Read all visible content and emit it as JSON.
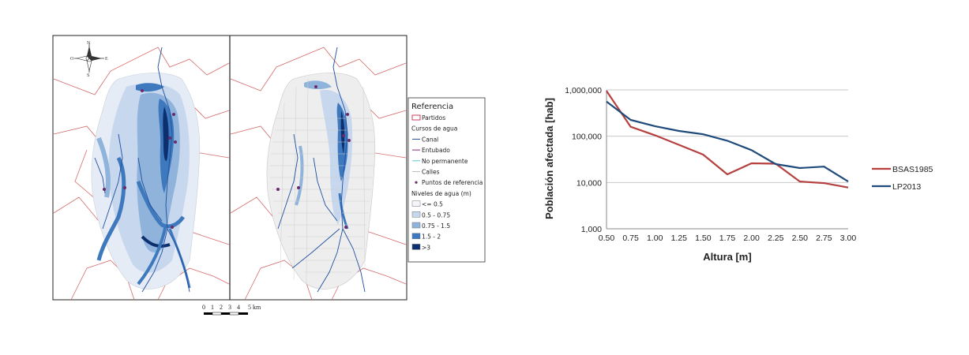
{
  "map": {
    "compass": {
      "n": "N",
      "s": "S",
      "e": "E",
      "o": "O"
    },
    "legend": {
      "title": "Referencia",
      "items": [
        {
          "label": "Partidos",
          "icon": "boundary-swatch-icon",
          "color": "#c8102e"
        },
        {
          "label": "Cursos de agua",
          "icon": "",
          "color": ""
        },
        {
          "label": "Canal",
          "icon": "canal-line-icon",
          "color": "#1f4fa0"
        },
        {
          "label": "Entubado",
          "icon": "entubado-line-icon",
          "color": "#8b2a7a"
        },
        {
          "label": "No permanente",
          "icon": "no-permanente-line-icon",
          "color": "#5fc6c9"
        },
        {
          "label": "Calles",
          "icon": "calles-line-icon",
          "color": "#bbbbbb"
        },
        {
          "label": "Puntos de referencia",
          "icon": "reference-point-icon",
          "color": "#6a2a6a"
        },
        {
          "label": "Niveles de agua (m)",
          "icon": "",
          "color": ""
        },
        {
          "label": "<= 0.5",
          "icon": "level-swatch-icon",
          "color": "#f4f6fb"
        },
        {
          "label": "0.5 - 0.75",
          "icon": "level-swatch-icon",
          "color": "#c6d7ee"
        },
        {
          "label": "0.75 - 1.5",
          "icon": "level-swatch-icon",
          "color": "#8fb3da"
        },
        {
          "label": "1.5 - 2",
          "icon": "level-swatch-icon",
          "color": "#3f79bd"
        },
        {
          "label": ">3",
          "icon": "level-swatch-icon",
          "color": "#0d2f6e"
        }
      ]
    },
    "scalebar": {
      "ticks": [
        "0",
        "1",
        "2",
        "3",
        "4",
        "5 km"
      ]
    }
  },
  "chart_data": {
    "type": "line",
    "xlabel": "Altura [m]",
    "ylabel": "Población afectada [hab]",
    "scale": "log",
    "x": [
      0.5,
      0.75,
      1.0,
      1.25,
      1.5,
      1.75,
      2.0,
      2.25,
      2.5,
      2.75,
      3.0
    ],
    "x_tick_labels": [
      "0.50",
      "0.75",
      "1.00",
      "1.25",
      "1.50",
      "1.75",
      "2.00",
      "2.25",
      "2.50",
      "2.75",
      "3.00"
    ],
    "y_ticks": [
      1000,
      10000,
      100000,
      1000000
    ],
    "y_tick_labels": [
      "1,000",
      "10,000",
      "100,000",
      "1,000,000"
    ],
    "ylim": [
      1000,
      1000000
    ],
    "xlim": [
      0.5,
      3.0
    ],
    "grid": "horizontal",
    "legend_position": "right",
    "series": [
      {
        "name": "BSAS1985",
        "color": "#b5403f",
        "values": [
          950000,
          160000,
          105000,
          65000,
          40000,
          15000,
          26000,
          25500,
          10500,
          9700,
          7800
        ]
      },
      {
        "name": "LP2013",
        "color": "#1f4a7c",
        "values": [
          560000,
          225000,
          165000,
          130000,
          110000,
          80000,
          50000,
          25000,
          20500,
          22000,
          10500
        ]
      }
    ]
  }
}
